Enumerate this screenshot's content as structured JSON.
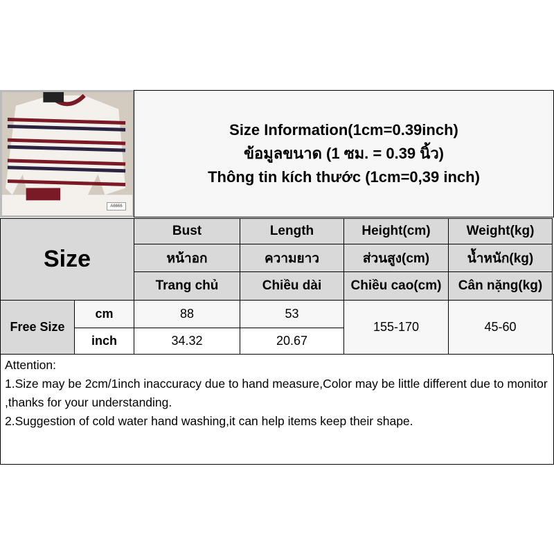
{
  "title": {
    "line1": "Size Information(1cm=0.39inch)",
    "line2": "ข้อมูลขนาด (1 ซม. = 0.39 นิ้ว)",
    "line3": "Thông tin kích thước (1cm=0,39 inch)"
  },
  "product_photo": {
    "tag": "A6666",
    "colors": {
      "stripe_red": "#7a1a26",
      "stripe_navy": "#2a2440",
      "sweater": "#f4f1ec"
    }
  },
  "header": {
    "size_label": "Size",
    "columns": [
      {
        "en": "Bust",
        "th": "หน้าอก",
        "vi": "Trang chủ"
      },
      {
        "en": "Length",
        "th": "ความยาว",
        "vi": "Chiều dài"
      },
      {
        "en": "Height(cm)",
        "th": "ส่วนสูง(cm)",
        "vi": "Chiều cao(cm)"
      },
      {
        "en": "Weight(kg)",
        "th": "น้ำหนัก(kg)",
        "vi": "Cân nặng(kg)"
      }
    ]
  },
  "rows": {
    "size": "Free Size",
    "cm": {
      "unit": "cm",
      "bust": "88",
      "length": "53"
    },
    "inch": {
      "unit": "inch",
      "bust": "34.32",
      "length": "20.67"
    },
    "height": "155-170",
    "weight": "45-60"
  },
  "attention": {
    "heading": "Attention:",
    "line1": "1.Size may be 2cm/1inch inaccuracy due to hand measure,Color may be little different due to monitor ,thanks for your understanding.",
    "line2": "2.Suggestion of cold water hand washing,it can help items keep their shape."
  }
}
